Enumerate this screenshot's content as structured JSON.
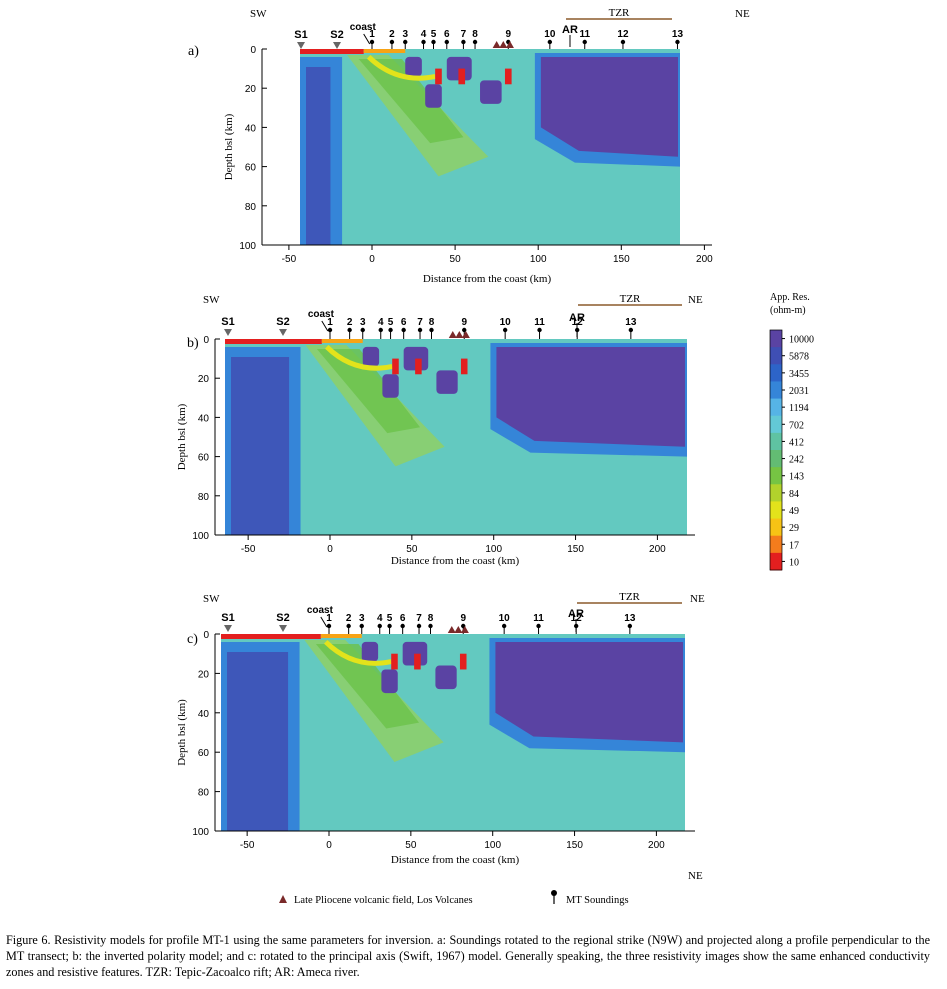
{
  "panels": [
    {
      "letter": "a)",
      "sw": "SW",
      "ne": "NE",
      "tzr": "TZR",
      "ar": "AR",
      "coast": "coast",
      "s_labels": [
        "S1",
        "S2"
      ],
      "stations": [
        "1",
        "2",
        "3",
        "4",
        "5",
        "6",
        "7",
        "8",
        "9",
        "10",
        "11",
        "12",
        "13"
      ],
      "ylabel": "Depth bsl (km)",
      "xlabel": "Distance from the coast (km)",
      "xticks": [
        "-50",
        "0",
        "50",
        "100",
        "150",
        "200"
      ],
      "yticks": [
        "0",
        "20",
        "40",
        "60",
        "80",
        "100"
      ]
    },
    {
      "letter": "b)",
      "sw": "SW",
      "ne": "NE",
      "tzr": "TZR",
      "ar": "AR",
      "coast": "coast",
      "s_labels": [
        "S1",
        "S2"
      ],
      "stations": [
        "1",
        "2",
        "3",
        "4",
        "5",
        "6",
        "7",
        "8",
        "9",
        "10",
        "11",
        "12",
        "13"
      ],
      "ylabel": "Depth bsl (km)",
      "xlabel": "Distance from the coast (km)",
      "xticks": [
        "-50",
        "0",
        "50",
        "100",
        "150",
        "200"
      ],
      "yticks": [
        "0",
        "20",
        "40",
        "60",
        "80",
        "100"
      ]
    },
    {
      "letter": "c)",
      "sw": "SW",
      "ne": "NE",
      "tzr": "TZR",
      "ar": "AR",
      "coast": "coast",
      "s_labels": [
        "S1",
        "S2"
      ],
      "stations": [
        "1",
        "2",
        "3",
        "4",
        "5",
        "6",
        "7",
        "8",
        "9",
        "10",
        "11",
        "12",
        "13"
      ],
      "ylabel": "Depth bsl (km)",
      "xlabel": "Distance from the coast (km)",
      "xticks": [
        "-50",
        "0",
        "50",
        "100",
        "150",
        "200"
      ],
      "yticks": [
        "0",
        "20",
        "40",
        "60",
        "80",
        "100"
      ]
    }
  ],
  "colorbar": {
    "title_line1": "App. Res.",
    "title_line2": "(ohm-m)",
    "labels": [
      "10000",
      "5878",
      "3455",
      "2031",
      "1194",
      "702",
      "412",
      "242",
      "143",
      "84",
      "49",
      "29",
      "17",
      "10"
    ],
    "colors": [
      "#5a43a3",
      "#3f4fb4",
      "#2d64c8",
      "#3585d8",
      "#56b4e6",
      "#63c9d6",
      "#5fc3a2",
      "#63bc73",
      "#76c443",
      "#b2d22c",
      "#e3e31b",
      "#f7c315",
      "#f47c1c",
      "#e31f1f"
    ]
  },
  "legend": {
    "volcano_label": "Late Pliocene volcanic field, Los Volcanes",
    "mt_label": "MT Soundings",
    "extra_ne": "NE"
  },
  "palette": {
    "purple": "#5a43a3",
    "dark_blue": "#3f4fb4",
    "blue": "#3585d8",
    "cyan": "#56b4e6",
    "teal": "#63c9c0",
    "light_green": "#8ccf6c",
    "green": "#6cc24a",
    "yellow": "#e3e31b",
    "orange": "#f7a315",
    "red": "#e31f1f",
    "tzr_line": "#8b5a2b",
    "volcano": "#7a2a2a"
  },
  "caption": "Figure 6. Resistivity models for profile MT-1 using the same parameters for inversion. a: Soundings rotated to the regional strike (N9W) and projected along a profile perpendicular to the MT transect; b: the inverted polarity model; and c: rotated to the principal axis (Swift, 1967) model. Generally speaking, the three resistivity images show the same enhanced conductivity zones and resistive features. TZR: Tepic-Zacoalco rift; AR: Ameca river."
}
